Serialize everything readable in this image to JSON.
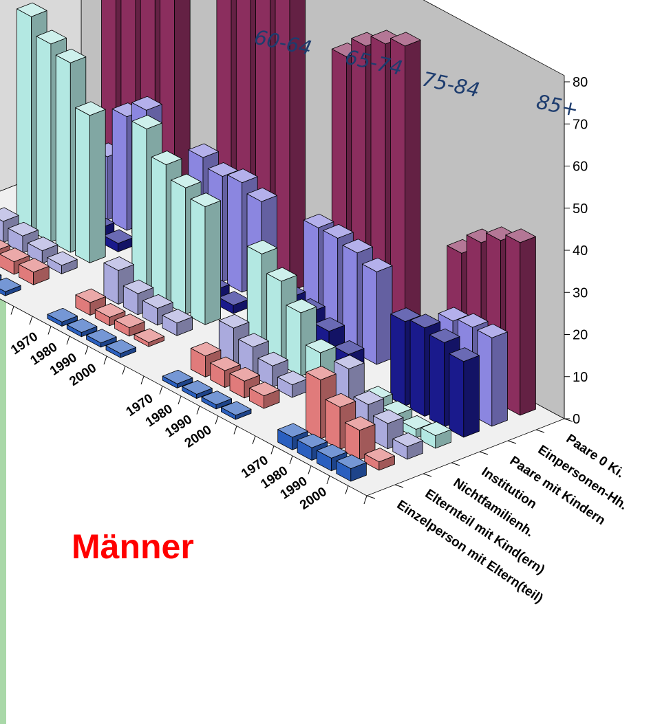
{
  "chart_data": {
    "type": "bar",
    "subtype": "3d-grouped",
    "title": "Männer",
    "age_groups": [
      "60-64",
      "65-74",
      "75-84",
      "85+"
    ],
    "years": [
      "1970",
      "1980",
      "1990",
      "2000"
    ],
    "household_types": [
      "Paare 0 Ki.",
      "Einpersonen-Hh.",
      "Paare mit Kindern",
      "Institution",
      "Nichtfamilienh.",
      "Elternteil mit Kind(ern)",
      "Einzelperson mit Eltern(teil)"
    ],
    "ylim": [
      0,
      80
    ],
    "yticks": [
      "0",
      "10",
      "20",
      "30",
      "40",
      "50",
      "60",
      "70",
      "80"
    ],
    "grid": false,
    "series": [
      {
        "name": "Paare 0 Ki.",
        "color": "#8b2e5e",
        "values": [
          [
            67,
            72,
            75,
            74
          ],
          [
            74,
            78,
            80,
            81
          ],
          [
            63,
            68,
            71,
            73
          ],
          [
            31,
            36,
            39,
            41
          ]
        ]
      },
      {
        "name": "Einpersonen-Hh.",
        "color": "#8b86e0",
        "values": [
          [
            14,
            15,
            27,
            31
          ],
          [
            27,
            25,
            26,
            24
          ],
          [
            25,
            25,
            24,
            22
          ],
          [
            13,
            20,
            21,
            21
          ]
        ]
      },
      {
        "name": "Paare mit Kindern",
        "color": "#1a1a8c",
        "values": [
          [
            5,
            5,
            3,
            2
          ],
          [
            6,
            5,
            3,
            2
          ],
          [
            11,
            10,
            8,
            5
          ],
          [
            20,
            21,
            20,
            18
          ]
        ]
      },
      {
        "name": "Institution",
        "color": "#b3e8e2",
        "values": [
          [
            51,
            47,
            45,
            35
          ],
          [
            39,
            33,
            30,
            28
          ],
          [
            24,
            20,
            15,
            8
          ],
          [
            4,
            3,
            2,
            3
          ]
        ]
      },
      {
        "name": "Nichtfamilienh.",
        "color": "#aaaadd",
        "values": [
          [
            5,
            4,
            3,
            2
          ],
          [
            8,
            5,
            4,
            3
          ],
          [
            9,
            7,
            5,
            3
          ],
          [
            14,
            8,
            6,
            3
          ]
        ]
      },
      {
        "name": "Elternteil mit Kind(ern)",
        "color": "#e07b7b",
        "values": [
          [
            3,
            3,
            3,
            3
          ],
          [
            3,
            2,
            2,
            1
          ],
          [
            5,
            4,
            4,
            3
          ],
          [
            14,
            10,
            7,
            2
          ]
        ]
      },
      {
        "name": "Einzelperson mit Eltern(teil)",
        "color": "#2a5fbf",
        "values": [
          [
            1,
            1,
            1,
            1
          ],
          [
            1,
            1,
            1,
            1
          ],
          [
            1,
            1,
            1,
            1
          ],
          [
            3,
            3,
            3,
            3
          ]
        ]
      }
    ]
  },
  "colors": {
    "left_bar": "#a9d8a8",
    "back_wall": "#c0c0c0",
    "floor": "#f0f0f0",
    "caption": "#ff0000",
    "group_label": "#1d3c6e"
  }
}
